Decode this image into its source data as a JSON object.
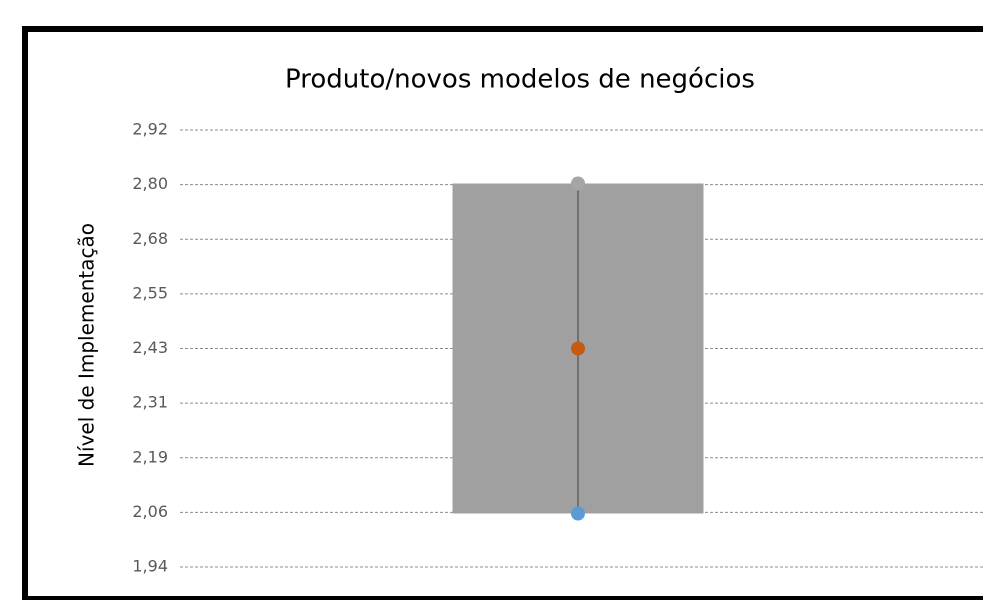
{
  "chart_data": {
    "type": "range",
    "title": "Produto/novos modelos de negócios",
    "y_label": "Nível de Implementação",
    "categories": [
      null
    ],
    "bar": {
      "low": 2.06,
      "high": 2.8,
      "color": "#a0a0a0"
    },
    "points": [
      {
        "value": 2.8,
        "color": "#a5a5a5"
      },
      {
        "value": 2.43,
        "color": "#c55a11"
      },
      {
        "value": 2.06,
        "color": "#5b9bd5"
      }
    ],
    "ylim": [
      1.94,
      2.92
    ],
    "yticks": [
      {
        "value": 1.94,
        "label": "1,94"
      },
      {
        "value": 2.0625,
        "label": "2,06"
      },
      {
        "value": 2.185,
        "label": "2,19"
      },
      {
        "value": 2.3075,
        "label": "2,31"
      },
      {
        "value": 2.43,
        "label": "2,43"
      },
      {
        "value": 2.5525,
        "label": "2,55"
      },
      {
        "value": 2.675,
        "label": "2,68"
      },
      {
        "value": 2.7975,
        "label": "2,80"
      },
      {
        "value": 2.92,
        "label": "2,92"
      }
    ],
    "grid": true
  }
}
